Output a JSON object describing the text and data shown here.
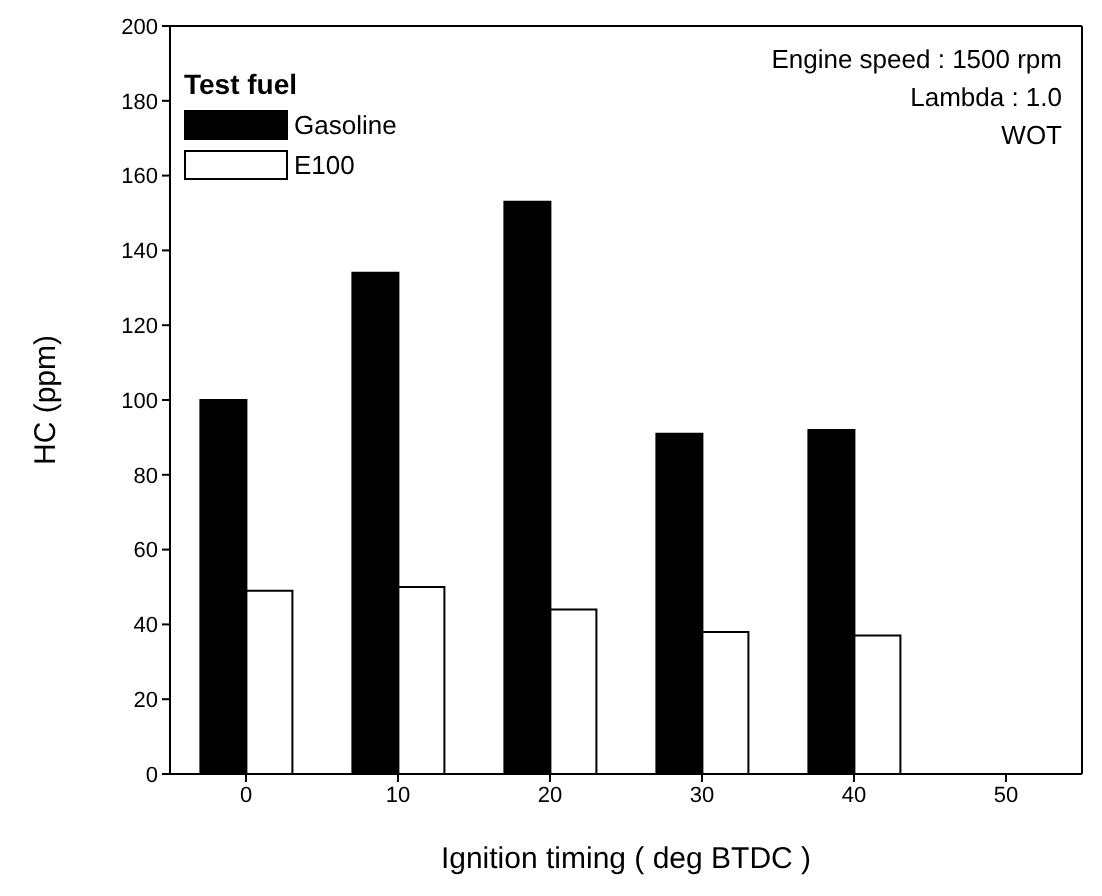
{
  "chart_data": {
    "type": "bar",
    "xlabel": "Ignition timing ( deg BTDC )",
    "ylabel": "HC (ppm)",
    "legend_title": "Test fuel",
    "categories": [
      "0",
      "10",
      "20",
      "30",
      "40",
      "50"
    ],
    "series": [
      {
        "name": "Gasoline",
        "color": "#000000",
        "values": [
          100,
          134,
          153,
          91,
          92,
          null
        ]
      },
      {
        "name": "E100",
        "color": "#ffffff",
        "values": [
          49,
          50,
          44,
          38,
          37,
          null
        ]
      }
    ],
    "ylim": [
      0,
      200
    ],
    "yticks": [
      0,
      20,
      40,
      60,
      80,
      100,
      120,
      140,
      160,
      180,
      200
    ],
    "legend": "top left",
    "annotations": [
      "Engine speed : 1500 rpm",
      "Lambda : 1.0",
      "WOT"
    ]
  }
}
